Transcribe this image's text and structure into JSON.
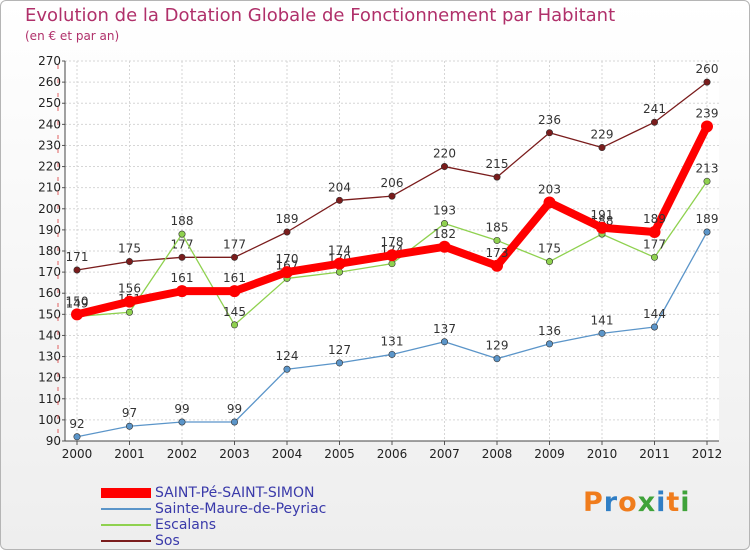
{
  "title": "Evolution de la Dotation Globale de Fonctionnement par Habitant",
  "subtitle": "(en € et par an)",
  "logo": "Proxiti",
  "chart_data": {
    "type": "line",
    "x": [
      "2000",
      "2001",
      "2002",
      "2003",
      "2004",
      "2005",
      "2006",
      "2007",
      "2008",
      "2009",
      "2010",
      "2011",
      "2012"
    ],
    "ylim": [
      90,
      270
    ],
    "yticks": [
      90,
      100,
      110,
      120,
      130,
      140,
      150,
      160,
      170,
      180,
      190,
      200,
      210,
      220,
      230,
      240,
      250,
      260,
      270
    ],
    "grid": true,
    "legend_position": "bottom-left",
    "series": [
      {
        "name": "Sos",
        "color": "#7a1c1c",
        "values": [
          171,
          175,
          177,
          177,
          189,
          204,
          206,
          220,
          215,
          236,
          229,
          241,
          260
        ]
      },
      {
        "name": "Escalans",
        "color": "#8fd14f",
        "values": [
          149,
          151,
          188,
          145,
          167,
          170,
          174,
          193,
          185,
          175,
          188,
          177,
          213
        ]
      },
      {
        "name": "Sainte-Maure-de-Peyriac",
        "color": "#5b95c9",
        "values": [
          92,
          97,
          99,
          99,
          124,
          127,
          131,
          137,
          129,
          136,
          141,
          144,
          189
        ]
      },
      {
        "name": "SAINT-Pé-SAINT-SIMON",
        "color": "#ff0000",
        "values": [
          150,
          156,
          161,
          161,
          170,
          174,
          178,
          182,
          173,
          203,
          191,
          189,
          239
        ]
      }
    ]
  }
}
